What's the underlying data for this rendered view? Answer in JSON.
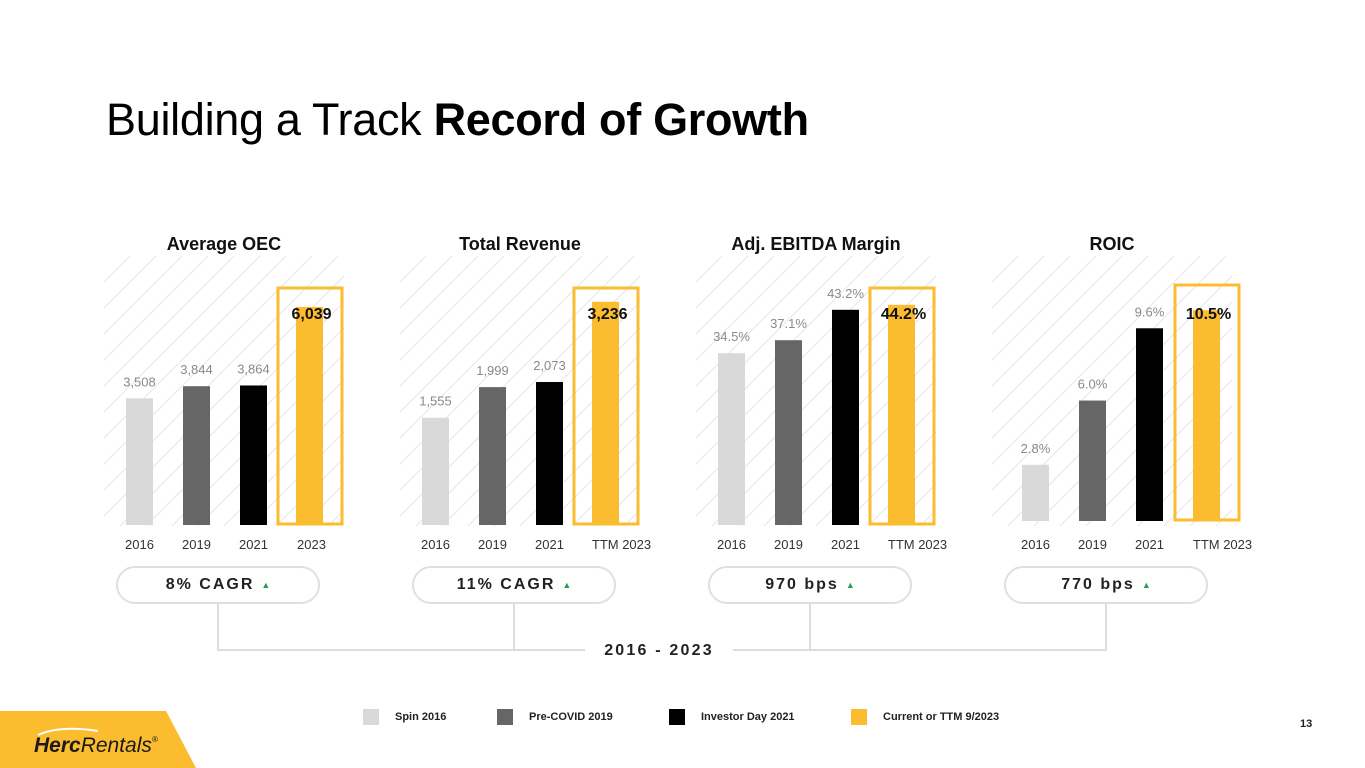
{
  "title": {
    "regular": "Building a Track",
    "bold": "Record of Growth"
  },
  "colors": {
    "spin": "#d9d9d9",
    "precovid": "#666666",
    "investor": "#000000",
    "current": "#fbbc2f",
    "highlight_border": "#fbbc2f",
    "hatch": "#e6e6e6",
    "growth_arrow": "#2e9a55",
    "connector": "#dddddd"
  },
  "chart_data": [
    {
      "type": "bar",
      "title": "Average OEC",
      "categories": [
        "2016",
        "2019",
        "2021",
        "2023"
      ],
      "values": [
        3508,
        3844,
        3864,
        6039
      ],
      "labels": [
        "3,508",
        "3,844",
        "3,864",
        "6,039"
      ],
      "ylim": [
        0,
        7450
      ],
      "highlight_index": 3,
      "growth": {
        "value": "8% CAGR",
        "icon": "up-triangle-icon"
      }
    },
    {
      "type": "bar",
      "title": "Total Revenue",
      "categories": [
        "2016",
        "2019",
        "2021",
        "TTM 2023"
      ],
      "values": [
        1555,
        1999,
        2073,
        3236
      ],
      "labels": [
        "1,555",
        "1,999",
        "2,073",
        "3,236"
      ],
      "ylim": [
        0,
        3900
      ],
      "highlight_index": 3,
      "growth": {
        "value": "11% CAGR",
        "icon": "up-triangle-icon"
      }
    },
    {
      "type": "bar",
      "title": "Adj. EBITDA Margin",
      "categories": [
        "2016",
        "2019",
        "2021",
        "TTM 2023"
      ],
      "values": [
        34.5,
        37.1,
        43.2,
        44.2
      ],
      "labels": [
        "34.5%",
        "37.1%",
        "43.2%",
        "44.2%"
      ],
      "ylim": [
        0,
        54
      ],
      "highlight_index": 3,
      "growth": {
        "value": "970 bps",
        "icon": "up-triangle-icon"
      }
    },
    {
      "type": "bar",
      "title": "ROIC",
      "categories": [
        "2016",
        "2019",
        "2021",
        "TTM 2023"
      ],
      "values": [
        2.8,
        6.0,
        9.6,
        10.5
      ],
      "labels": [
        "2.8%",
        "6.0%",
        "9.6%",
        "10.5%"
      ],
      "ylim": [
        0,
        13.2
      ],
      "highlight_index": 3,
      "growth": {
        "value": "770 bps",
        "icon": "up-triangle-icon"
      }
    }
  ],
  "period": "2016 - 2023",
  "legend": [
    {
      "label": "Spin 2016",
      "color": "#d9d9d9"
    },
    {
      "label": "Pre-COVID 2019",
      "color": "#666666"
    },
    {
      "label": "Investor Day 2021",
      "color": "#000000"
    },
    {
      "label": "Current or TTM 9/2023",
      "color": "#fbbc2f"
    }
  ],
  "logo": {
    "text_bold": "Herc",
    "text_regular": "Rentals",
    "mark": "®",
    "bg_color": "#fbbc2f"
  },
  "page_number": "13"
}
